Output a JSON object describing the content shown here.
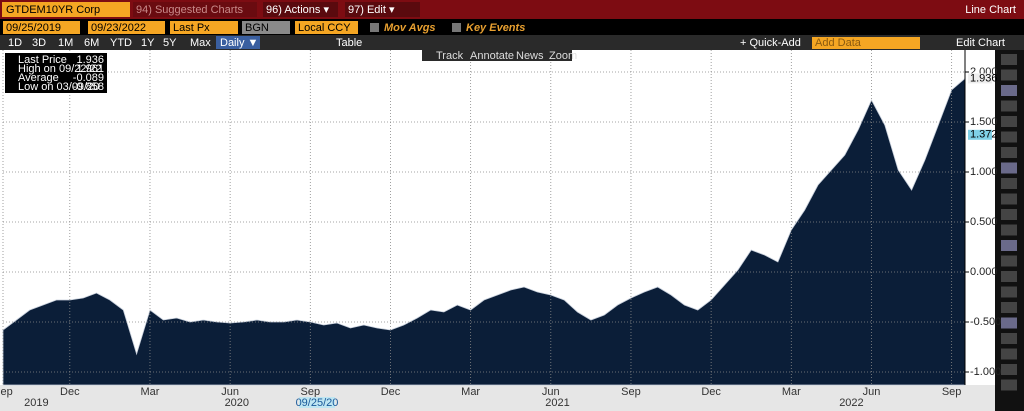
{
  "header": {
    "ticker": "GTDEM10YR Corp",
    "menu": [
      "94) Suggested Charts",
      "96) Actions ▾",
      "97) Edit ▾"
    ],
    "view": "Line Chart"
  },
  "settings": {
    "start_date": "09/25/2019",
    "end_date": "09/23/2022",
    "field": "Last Px",
    "source": "BGN",
    "currency": "Local CCY",
    "options": [
      "Mov Avgs",
      "Key Events"
    ]
  },
  "periods": {
    "buttons": [
      "1D",
      "3D",
      "1M",
      "6M",
      "YTD",
      "1Y",
      "5Y",
      "Max"
    ],
    "frequency": "Daily ▼",
    "table": "Table",
    "quick_add": "+ Quick-Add",
    "add_data": "Add Data",
    "edit_chart": "Edit Chart"
  },
  "chart_tools": [
    "Track",
    "Annotate",
    "News",
    "Zoom"
  ],
  "chart_data": {
    "type": "area",
    "color": "#0b1e38",
    "grid": true,
    "values": [
      -0.58,
      -0.48,
      -0.38,
      -0.33,
      -0.28,
      -0.28,
      -0.26,
      -0.21,
      -0.28,
      -0.38,
      -0.82,
      -0.38,
      -0.48,
      -0.46,
      -0.5,
      -0.48,
      -0.5,
      -0.51,
      -0.5,
      -0.48,
      -0.5,
      -0.5,
      -0.48,
      -0.5,
      -0.53,
      -0.51,
      -0.56,
      -0.53,
      -0.56,
      -0.58,
      -0.53,
      -0.46,
      -0.38,
      -0.4,
      -0.33,
      -0.38,
      -0.28,
      -0.23,
      -0.18,
      -0.15,
      -0.2,
      -0.23,
      -0.28,
      -0.4,
      -0.48,
      -0.43,
      -0.33,
      -0.26,
      -0.2,
      -0.15,
      -0.23,
      -0.33,
      -0.38,
      -0.28,
      -0.13,
      0.02,
      0.22,
      0.17,
      0.1,
      0.42,
      0.62,
      0.87,
      1.02,
      1.17,
      1.42,
      1.72,
      1.47,
      1.02,
      0.82,
      1.12,
      1.47,
      1.82,
      1.936
    ],
    "xlim": [
      0,
      72
    ],
    "xticks": [
      {
        "value": 0,
        "label": "Sep"
      },
      {
        "value": 5,
        "label": "Dec"
      },
      {
        "value": 11,
        "label": "Mar"
      },
      {
        "value": 17,
        "label": "Jun"
      },
      {
        "value": 23,
        "label": "Sep"
      },
      {
        "value": 29,
        "label": "Dec"
      },
      {
        "value": 35,
        "label": "Mar"
      },
      {
        "value": 41,
        "label": "Jun"
      },
      {
        "value": 47,
        "label": "Sep"
      },
      {
        "value": 53,
        "label": "Dec"
      },
      {
        "value": 59,
        "label": "Mar"
      },
      {
        "value": 65,
        "label": "Jun"
      },
      {
        "value": 71,
        "label": "Sep"
      }
    ],
    "years": [
      {
        "value": 2.5,
        "label": "2019"
      },
      {
        "value": 17.5,
        "label": "2020"
      },
      {
        "value": 41.5,
        "label": "2021"
      },
      {
        "value": 63.5,
        "label": "2022"
      }
    ],
    "cursor_date": {
      "value": 23.5,
      "label": "09/25/20"
    },
    "ylim": [
      -1.13,
      2.22
    ],
    "yticks": [
      {
        "value": 2,
        "label": "2.000"
      },
      {
        "value": 1.5,
        "label": "1.500"
      },
      {
        "value": 1,
        "label": "1.000"
      },
      {
        "value": 0.5,
        "label": "0.500"
      },
      {
        "value": 0,
        "label": "0.000"
      },
      {
        "value": -0.5,
        "label": "-0.500"
      },
      {
        "value": -1,
        "label": "-1.000"
      }
    ],
    "markers": [
      {
        "value": 1.936,
        "label": "1.936"
      },
      {
        "value": 1.372,
        "label": "1.372"
      }
    ],
    "stats": [
      {
        "label": "Last Price",
        "value": "1.936"
      },
      {
        "label": "High on 09/22/22",
        "value": "1.961"
      },
      {
        "label": "Average",
        "value": "-0.089"
      },
      {
        "label": "Low on 03/09/20",
        "value": "-0.858"
      }
    ]
  }
}
